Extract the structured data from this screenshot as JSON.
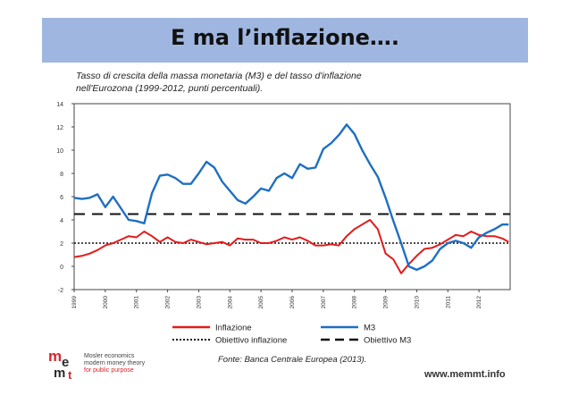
{
  "slide": {
    "title": "E ma l’inflazione…."
  },
  "figure": {
    "title_line1": "Tasso di crescita della massa monetaria (M3) e del  tasso d'inflazione",
    "title_line2": "nell'Eurozona (1999-2012, punti percentuali).",
    "source": "Fonte: Banca Centrale Europea (2013).",
    "website": "www.memmt.info",
    "logo": {
      "line1": "Mosler economics",
      "line2": "modern money theory",
      "line3": "for public purpose"
    }
  },
  "colors": {
    "inflazione": "#e31b1b",
    "m3": "#1f6fc1",
    "header": "#9fb7e0",
    "logo_red": "#d9262b"
  },
  "chart_data": {
    "type": "line",
    "ylim": [
      -2,
      14
    ],
    "yticks": [
      "14",
      "12",
      "10",
      "8",
      "6",
      "4",
      "2",
      "0",
      "-2"
    ],
    "xlim": [
      1999.0,
      2013.0
    ],
    "xticks": [
      "1999",
      "2000",
      "2001",
      "2002",
      "2003",
      "2004",
      "2005",
      "2006",
      "2007",
      "2008",
      "2009",
      "2010",
      "2011",
      "2012"
    ],
    "grid": false,
    "legend_placement": "bottom",
    "series": [
      {
        "name": "Inflazione",
        "color": "#e31b1b",
        "x": [
          1999.0,
          1999.25,
          1999.5,
          1999.75,
          2000.0,
          2000.25,
          2000.5,
          2000.75,
          2001.0,
          2001.25,
          2001.5,
          2001.75,
          2002.0,
          2002.25,
          2002.5,
          2002.75,
          2003.0,
          2003.25,
          2003.5,
          2003.75,
          2004.0,
          2004.25,
          2004.5,
          2004.75,
          2005.0,
          2005.25,
          2005.5,
          2005.75,
          2006.0,
          2006.25,
          2006.5,
          2006.75,
          2007.0,
          2007.25,
          2007.5,
          2007.75,
          2008.0,
          2008.25,
          2008.5,
          2008.75,
          2009.0,
          2009.25,
          2009.5,
          2009.75,
          2010.0,
          2010.25,
          2010.5,
          2010.75,
          2011.0,
          2011.25,
          2011.5,
          2011.75,
          2012.0,
          2012.25,
          2012.5,
          2012.75,
          2012.95
        ],
        "values": [
          0.8,
          0.9,
          1.1,
          1.4,
          1.8,
          2.0,
          2.3,
          2.6,
          2.5,
          3.0,
          2.6,
          2.1,
          2.5,
          2.1,
          2.0,
          2.3,
          2.1,
          1.9,
          2.0,
          2.1,
          1.8,
          2.4,
          2.3,
          2.3,
          2.0,
          2.0,
          2.2,
          2.5,
          2.3,
          2.5,
          2.2,
          1.8,
          1.8,
          1.9,
          1.8,
          2.6,
          3.2,
          3.6,
          4.0,
          3.2,
          1.1,
          0.6,
          -0.6,
          0.2,
          0.9,
          1.5,
          1.6,
          1.9,
          2.3,
          2.7,
          2.6,
          3.0,
          2.7,
          2.6,
          2.6,
          2.4,
          2.1
        ]
      },
      {
        "name": "M3",
        "color": "#1f6fc1",
        "x": [
          1999.0,
          1999.25,
          1999.5,
          1999.75,
          2000.0,
          2000.25,
          2000.5,
          2000.75,
          2001.0,
          2001.25,
          2001.5,
          2001.75,
          2002.0,
          2002.25,
          2002.5,
          2002.75,
          2003.0,
          2003.25,
          2003.5,
          2003.75,
          2004.0,
          2004.25,
          2004.5,
          2004.75,
          2005.0,
          2005.25,
          2005.5,
          2005.75,
          2006.0,
          2006.25,
          2006.5,
          2006.75,
          2007.0,
          2007.25,
          2007.5,
          2007.75,
          2008.0,
          2008.25,
          2008.5,
          2008.75,
          2009.0,
          2009.25,
          2009.5,
          2009.75,
          2010.0,
          2010.25,
          2010.5,
          2010.75,
          2011.0,
          2011.25,
          2011.5,
          2011.75,
          2012.0,
          2012.25,
          2012.5,
          2012.75,
          2012.95
        ],
        "values": [
          5.9,
          5.8,
          5.9,
          6.2,
          5.1,
          6.0,
          5.0,
          4.0,
          3.9,
          3.7,
          6.3,
          7.8,
          7.9,
          7.6,
          7.1,
          7.1,
          8.0,
          9.0,
          8.5,
          7.3,
          6.5,
          5.7,
          5.4,
          6.0,
          6.7,
          6.5,
          7.6,
          8.0,
          7.6,
          8.8,
          8.4,
          8.5,
          10.1,
          10.6,
          11.3,
          12.2,
          11.4,
          10.0,
          8.8,
          7.7,
          5.9,
          3.9,
          2.0,
          0.0,
          -0.3,
          0.0,
          0.5,
          1.5,
          2.0,
          2.2,
          2.0,
          1.6,
          2.5,
          2.9,
          3.2,
          3.6,
          3.6
        ]
      },
      {
        "name": "Obiettivo inflazione",
        "style": "dotted",
        "values": [
          2,
          2
        ]
      },
      {
        "name": "Obiettivo M3",
        "style": "dashed",
        "values": [
          4.5,
          4.5
        ]
      }
    ]
  }
}
